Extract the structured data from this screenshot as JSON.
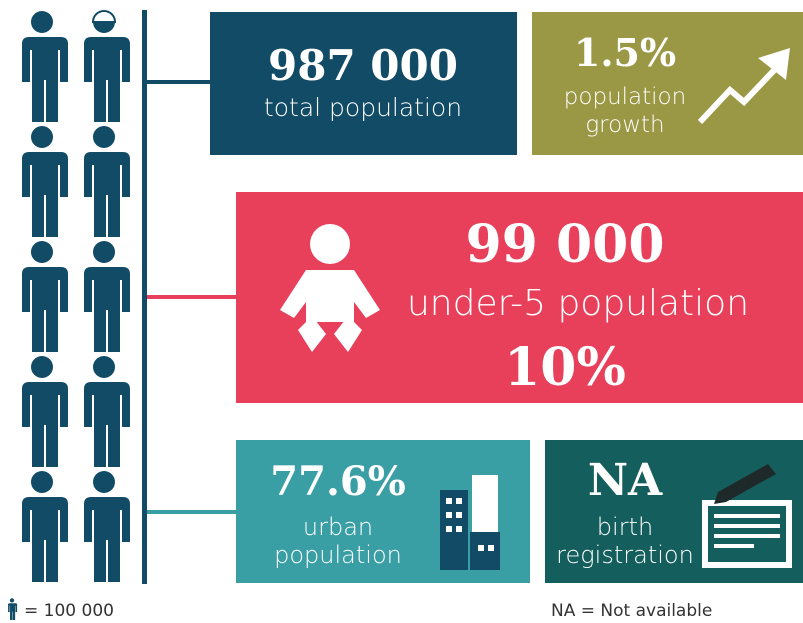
{
  "total": {
    "value": "987 000",
    "label": "total population"
  },
  "growth": {
    "value": "1.5%",
    "label": [
      "population",
      "growth"
    ]
  },
  "under5": {
    "value": "99 000",
    "label": "under-5 population",
    "share": "10%"
  },
  "urban": {
    "value": "77.6%",
    "label": [
      "urban",
      "population"
    ]
  },
  "birth": {
    "value": "NA",
    "label": [
      "birth",
      "registration"
    ]
  },
  "legend": {
    "icon": "= 100 000",
    "na": "NA = Not available"
  }
}
